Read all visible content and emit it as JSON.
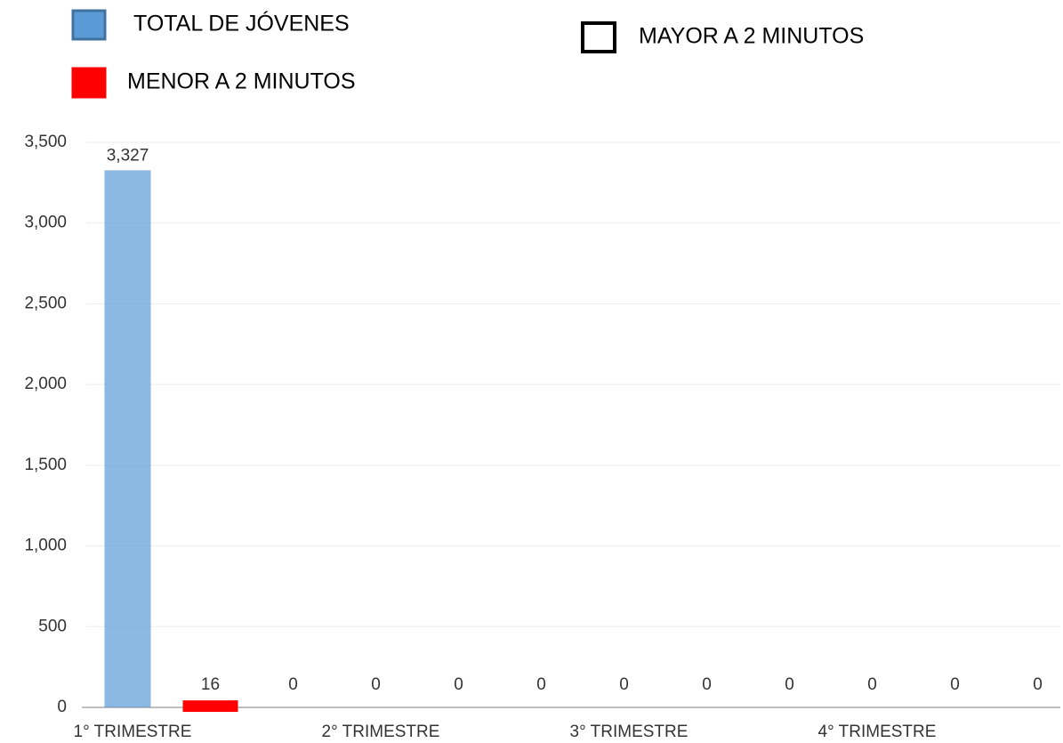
{
  "chart_data": {
    "type": "bar",
    "categories": [
      "1° TRIMESTRE",
      "2° TRIMESTRE",
      "3° TRIMESTRE",
      "4° TRIMESTRE"
    ],
    "series": [
      {
        "name": "TOTAL DE JÓVENES",
        "color": "#5b9bd5",
        "values": [
          3327,
          0,
          0,
          0
        ],
        "value_labels": [
          "3,327",
          "0",
          "0",
          "0"
        ]
      },
      {
        "name": "MENOR A 2 MINUTOS",
        "color": "#ff0000",
        "values": [
          16,
          0,
          0,
          0
        ]
      },
      {
        "name": "MAYOR A 2 MINUTOS",
        "color": "#ffffff",
        "values": [
          0,
          0,
          0,
          0
        ]
      }
    ],
    "ylim": [
      0,
      3500
    ],
    "yticks": [
      0,
      500,
      {
        "value": 1000,
        "label": "1,000"
      },
      {
        "value": 1500,
        "label": "1,500"
      },
      {
        "value": 2000,
        "label": "2,000"
      },
      {
        "value": 2500,
        "label": "2,500"
      },
      {
        "value": 3000,
        "label": "3,000"
      },
      {
        "value": 3500,
        "label": "3,500"
      }
    ],
    "grid": true
  }
}
